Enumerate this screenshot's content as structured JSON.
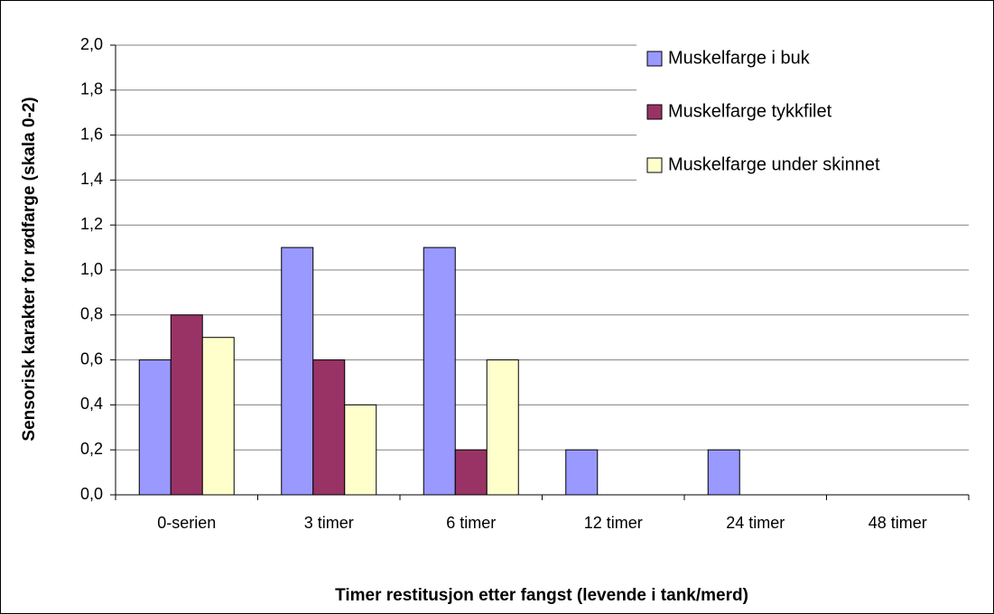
{
  "chart_data": {
    "type": "bar",
    "y_label": "Sensorisk karakter for rødfarge (skala 0-2)",
    "x_label": "Timer restitusjon etter fangst (levende i tank/merd)",
    "categories": [
      "0-serien",
      "3 timer",
      "6 timer",
      "12 timer",
      "24 timer",
      "48 timer"
    ],
    "series": [
      {
        "name": "Muskelfarge i buk",
        "color": "#9999ff",
        "values": [
          0.6,
          1.1,
          1.1,
          0.2,
          0.2,
          0
        ]
      },
      {
        "name": "Muskelfarge tykkfilet",
        "color": "#993366",
        "values": [
          0.8,
          0.6,
          0.2,
          0,
          0,
          0
        ]
      },
      {
        "name": "Muskelfarge under skinnet",
        "color": "#ffffcc",
        "values": [
          0.7,
          0.4,
          0.6,
          0,
          0,
          0
        ]
      }
    ],
    "ylim": [
      0,
      2
    ],
    "yticks": [
      {
        "value": 0,
        "label": "0,0"
      },
      {
        "value": 0.2,
        "label": "0,2"
      },
      {
        "value": 0.4,
        "label": "0,4"
      },
      {
        "value": 0.6,
        "label": "0,6"
      },
      {
        "value": 0.8,
        "label": "0,8"
      },
      {
        "value": 1,
        "label": "1,0"
      },
      {
        "value": 1.2,
        "label": "1,2"
      },
      {
        "value": 1.4,
        "label": "1,4"
      },
      {
        "value": 1.6,
        "label": "1,6"
      },
      {
        "value": 1.8,
        "label": "1,8"
      },
      {
        "value": 2,
        "label": "2,0"
      }
    ],
    "grid": true,
    "legend": "top-right"
  }
}
